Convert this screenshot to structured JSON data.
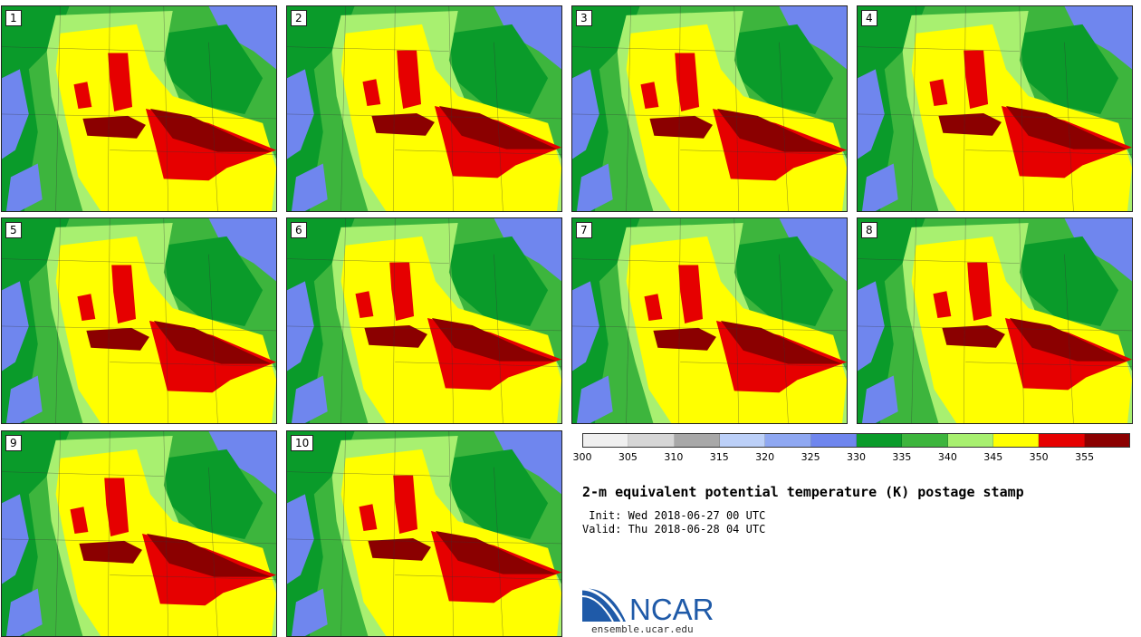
{
  "product": {
    "title": "2-m equivalent potential temperature (K) postage stamp",
    "init": "Init: Wed 2018-06-27 00 UTC",
    "valid": "Valid: Thu 2018-06-28 04 UTC"
  },
  "members": [
    {
      "label": "1"
    },
    {
      "label": "2"
    },
    {
      "label": "3"
    },
    {
      "label": "4"
    },
    {
      "label": "5"
    },
    {
      "label": "6"
    },
    {
      "label": "7"
    },
    {
      "label": "8"
    },
    {
      "label": "9"
    },
    {
      "label": "10"
    }
  ],
  "colorbar": {
    "ticks": [
      "300",
      "305",
      "310",
      "315",
      "320",
      "325",
      "330",
      "335",
      "340",
      "345",
      "350",
      "355"
    ],
    "colors": [
      "#f0f0f0",
      "#d6d6d6",
      "#a8a8a8",
      "#bcd0f8",
      "#8fa8f2",
      "#6f86ee",
      "#0a9b2a",
      "#3db53d",
      "#a8f070",
      "#ffff00",
      "#e60000",
      "#8b0000"
    ]
  },
  "logo": {
    "text": "NCAR",
    "url_text": "ensemble.ucar.edu"
  },
  "icons": {
    "logo": "ncar-logo-icon"
  }
}
